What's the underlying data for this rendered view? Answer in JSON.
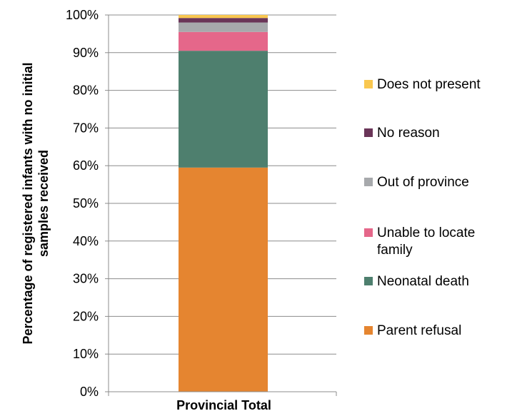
{
  "chart_data": {
    "type": "bar",
    "stacked": true,
    "categories": [
      "Provincial Total"
    ],
    "ylabel": "Percentage of registered infants with no initial samples received",
    "xlabel": "",
    "ylim": [
      0,
      100
    ],
    "y_ticks": [
      "0%",
      "10%",
      "20%",
      "30%",
      "40%",
      "50%",
      "60%",
      "70%",
      "80%",
      "90%",
      "100%"
    ],
    "grid": true,
    "legend_position": "right",
    "series": [
      {
        "name": "Parent refusal",
        "values": [
          59.5
        ],
        "color": "#E58530"
      },
      {
        "name": "Neonatal death",
        "values": [
          31.0
        ],
        "color": "#4E7F6E"
      },
      {
        "name": "Unable to locate family",
        "values": [
          5.0
        ],
        "color": "#E5678A"
      },
      {
        "name": "Out of province",
        "values": [
          2.5
        ],
        "color": "#A7A9AC"
      },
      {
        "name": "No reason",
        "values": [
          1.2
        ],
        "color": "#6A3558"
      },
      {
        "name": "Does not present",
        "values": [
          0.8
        ],
        "color": "#F9C74F"
      }
    ]
  }
}
